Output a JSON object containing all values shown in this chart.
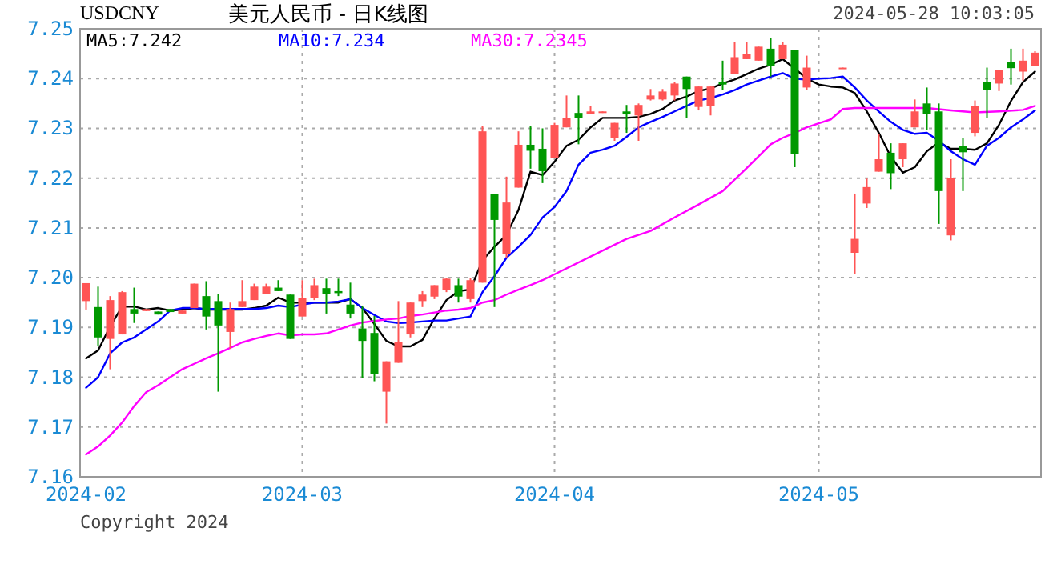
{
  "chart_data": {
    "type": "candlestick",
    "title": "美元人民币 - 日K线图",
    "subtitle": "USDCNY",
    "annotations": [
      "2024-05-28 10:03:05",
      "Copyright 2024"
    ],
    "categories": [
      "2024-02",
      null,
      null,
      null,
      null,
      null,
      null,
      null,
      null,
      null,
      null,
      null,
      null,
      null,
      null,
      null,
      null,
      null,
      "2024-03",
      null,
      null,
      null,
      null,
      null,
      null,
      null,
      null,
      null,
      null,
      null,
      null,
      null,
      null,
      null,
      null,
      null,
      null,
      null,
      null,
      "2024-04",
      null,
      null,
      null,
      null,
      null,
      null,
      null,
      null,
      null,
      null,
      null,
      null,
      null,
      null,
      null,
      null,
      null,
      null,
      null,
      null,
      null,
      "2024-05",
      null,
      null,
      null,
      null,
      null,
      null,
      null,
      null,
      null,
      null,
      null,
      null,
      null,
      null,
      null,
      null,
      null,
      null
    ],
    "ohlc": [
      [
        7.1953,
        7.1989,
        7.1936,
        7.1989
      ],
      [
        7.1941,
        7.1982,
        7.1862,
        7.188
      ],
      [
        7.1877,
        7.1963,
        7.1816,
        7.1955
      ],
      [
        7.1886,
        7.1973,
        7.1886,
        7.1971
      ],
      [
        7.1937,
        7.198,
        7.1909,
        7.1928
      ],
      [
        7.1933,
        7.1937,
        7.1933,
        7.1937
      ],
      [
        7.1932,
        7.1932,
        7.1926,
        7.1926
      ],
      [
        7.1937,
        7.1937,
        7.1931,
        7.1931
      ],
      [
        7.1928,
        7.1934,
        7.1928,
        7.1934
      ],
      [
        7.1939,
        7.1988,
        7.1939,
        7.1988
      ],
      [
        7.1963,
        7.1993,
        7.1896,
        7.1922
      ],
      [
        7.1953,
        7.1968,
        7.1771,
        7.1904
      ],
      [
        7.1891,
        7.195,
        7.1857,
        7.1937
      ],
      [
        7.1941,
        7.1995,
        7.1941,
        7.1953
      ],
      [
        7.1955,
        7.1988,
        7.1955,
        7.1982
      ],
      [
        7.1968,
        7.1988,
        7.1968,
        7.1982
      ],
      [
        7.198,
        7.1995,
        7.1973,
        7.1973
      ],
      [
        7.1966,
        7.1966,
        7.1877,
        7.1877
      ],
      [
        7.1922,
        7.1995,
        7.1922,
        7.196
      ],
      [
        7.196,
        7.1998,
        7.1955,
        7.1985
      ],
      [
        7.1979,
        7.1998,
        7.1928,
        7.1968
      ],
      [
        7.1973,
        7.1998,
        7.1963,
        7.1969
      ],
      [
        7.1946,
        7.199,
        7.1918,
        7.1928
      ],
      [
        7.1898,
        7.1944,
        7.1798,
        7.1873
      ],
      [
        7.1889,
        7.1923,
        7.1792,
        7.1806
      ],
      [
        7.1771,
        7.1832,
        7.1707,
        7.1832
      ],
      [
        7.1829,
        7.1953,
        7.1829,
        7.187
      ],
      [
        7.1886,
        7.195,
        7.188,
        7.195
      ],
      [
        7.1953,
        7.1973,
        7.1941,
        7.1966
      ],
      [
        7.1962,
        7.1985,
        7.1957,
        7.1985
      ],
      [
        7.1976,
        7.2,
        7.1971,
        7.1998
      ],
      [
        7.1985,
        7.1998,
        7.195,
        7.1962
      ],
      [
        7.1957,
        7.2,
        7.195,
        7.1995
      ],
      [
        7.199,
        7.2304,
        7.199,
        7.2294
      ],
      [
        7.2168,
        7.2168,
        7.1941,
        7.2116
      ],
      [
        7.2048,
        7.2203,
        7.2039,
        7.2151
      ],
      [
        7.2181,
        7.2294,
        7.2181,
        7.2267
      ],
      [
        7.2267,
        7.2304,
        7.2219,
        7.2255
      ],
      [
        7.2259,
        7.23,
        7.219,
        7.2214
      ],
      [
        7.224,
        7.2311,
        7.224,
        7.2307
      ],
      [
        7.2302,
        7.2366,
        7.2302,
        7.2321
      ],
      [
        7.2331,
        7.2366,
        7.2268,
        7.232
      ],
      [
        7.2329,
        7.2345,
        7.2329,
        7.2334
      ],
      [
        7.2331,
        7.2334,
        7.2331,
        7.2334
      ],
      [
        7.2281,
        7.2311,
        7.2275,
        7.2311
      ],
      [
        7.2334,
        7.2347,
        7.2291,
        7.2328
      ],
      [
        7.2326,
        7.235,
        7.2275,
        7.2347
      ],
      [
        7.2358,
        7.2379,
        7.2356,
        7.2366
      ],
      [
        7.2358,
        7.2379,
        7.2356,
        7.2374
      ],
      [
        7.2366,
        7.2393,
        7.2356,
        7.239
      ],
      [
        7.2404,
        7.2404,
        7.232,
        7.2379
      ],
      [
        7.2343,
        7.2384,
        7.2336,
        7.2384
      ],
      [
        7.2345,
        7.2384,
        7.2326,
        7.2384
      ],
      [
        7.2393,
        7.2436,
        7.2377,
        7.2388
      ],
      [
        7.2409,
        7.2473,
        7.2409,
        7.2443
      ],
      [
        7.2439,
        7.2473,
        7.2439,
        7.2449
      ],
      [
        7.2436,
        7.2464,
        7.2436,
        7.2464
      ],
      [
        7.246,
        7.2482,
        7.2404,
        7.2425
      ],
      [
        7.2439,
        7.2473,
        7.2439,
        7.2468
      ],
      [
        7.2457,
        7.2457,
        7.2222,
        7.2249
      ],
      [
        7.2382,
        7.2446,
        7.2377,
        7.2422
      ],
      null,
      null,
      [
        7.2421,
        7.2422,
        7.2421,
        7.2422
      ],
      [
        7.205,
        7.2169,
        7.2008,
        7.2078
      ],
      [
        7.2149,
        7.2199,
        7.214,
        7.2182
      ],
      [
        7.2213,
        7.2289,
        7.2213,
        7.2238
      ],
      [
        7.2251,
        7.227,
        7.2178,
        7.221
      ],
      [
        7.2238,
        7.227,
        7.2222,
        7.227
      ],
      [
        7.2302,
        7.2358,
        7.2302,
        7.2334
      ],
      [
        7.235,
        7.2382,
        7.2297,
        7.2329
      ],
      [
        7.2334,
        7.235,
        7.2108,
        7.2174
      ],
      [
        7.2085,
        7.2238,
        7.2075,
        7.22
      ],
      [
        7.2265,
        7.2281,
        7.2174,
        7.2252
      ],
      [
        7.2291,
        7.2356,
        7.2284,
        7.2345
      ],
      [
        7.2393,
        7.2422,
        7.2321,
        7.2377
      ],
      [
        7.239,
        7.2417,
        7.2375,
        7.2417
      ],
      [
        7.2433,
        7.246,
        7.2388,
        7.2421
      ],
      [
        7.2414,
        7.246,
        7.2396,
        7.2436
      ],
      [
        7.2425,
        7.2455,
        7.2425,
        7.2452
      ]
    ],
    "colors": [
      "#ff5555",
      "#009900",
      "#ff5555",
      "#ff5555",
      "#009900",
      "#ff5555",
      "#009900",
      "#009900",
      "#ff5555",
      "#ff5555",
      "#009900",
      "#009900",
      "#ff5555",
      "#ff5555",
      "#ff5555",
      "#ff5555",
      "#009900",
      "#009900",
      "#ff5555",
      "#ff5555",
      "#009900",
      "#009900",
      "#009900",
      "#009900",
      "#009900",
      "#ff5555",
      "#ff5555",
      "#ff5555",
      "#ff5555",
      "#ff5555",
      "#ff5555",
      "#009900",
      "#ff5555",
      "#ff5555",
      "#009900",
      "#ff5555",
      "#ff5555",
      "#009900",
      "#009900",
      "#ff5555",
      "#ff5555",
      "#009900",
      "#ff5555",
      "#ff5555",
      "#ff5555",
      "#009900",
      "#ff5555",
      "#ff5555",
      "#ff5555",
      "#ff5555",
      "#009900",
      "#ff5555",
      "#ff5555",
      "#009900",
      "#ff5555",
      "#ff5555",
      "#ff5555",
      "#009900",
      "#ff5555",
      "#009900",
      "#ff5555",
      null,
      null,
      "#ff5555",
      "#ff5555",
      "#ff5555",
      "#ff5555",
      "#009900",
      "#ff5555",
      "#ff5555",
      "#009900",
      "#009900",
      "#ff5555",
      "#009900",
      "#ff5555",
      "#009900",
      "#ff5555",
      "#009900",
      "#ff5555",
      "#ff5555"
    ],
    "series": [
      {
        "name": "MA5:7.242",
        "type": "line",
        "color": "#000000",
        "values": [
          7.1838,
          7.1854,
          7.1902,
          7.1942,
          7.1942,
          7.1936,
          7.1939,
          7.1934,
          7.1936,
          7.1939,
          7.1936,
          7.1936,
          7.1936,
          7.1936,
          7.1939,
          7.1944,
          7.196,
          7.195,
          7.195,
          7.195,
          7.195,
          7.195,
          7.1957,
          7.1939,
          7.1907,
          7.1873,
          7.1862,
          7.1862,
          7.1875,
          7.1918,
          7.1955,
          7.1973,
          7.1976,
          7.2035,
          7.2062,
          7.2086,
          7.2136,
          7.2213,
          7.2206,
          7.2233,
          7.2265,
          7.2277,
          7.2302,
          7.2321,
          7.2321,
          7.2321,
          7.2323,
          7.2329,
          7.2339,
          7.2356,
          7.2364,
          7.2375,
          7.238,
          7.239,
          7.2398,
          7.2409,
          7.242,
          7.2428,
          7.2439,
          7.242,
          7.24,
          7.2388,
          7.2384,
          7.2382,
          7.2371,
          7.2334,
          7.2291,
          7.2243,
          7.2211,
          7.2222,
          7.2254,
          7.2272,
          7.2259,
          7.2259,
          7.2257,
          7.227,
          7.2307,
          7.2355,
          7.2393,
          7.2414
        ]
      },
      {
        "name": "MA10:7.234",
        "type": "line",
        "color": "#0000ff",
        "values": [
          7.1779,
          7.18,
          7.1848,
          7.187,
          7.188,
          7.1896,
          7.1912,
          7.1934,
          7.1939,
          7.1939,
          7.1937,
          7.1937,
          7.1937,
          7.1937,
          7.1937,
          7.1939,
          7.1944,
          7.1941,
          7.1946,
          7.195,
          7.195,
          7.1952,
          7.1957,
          7.1939,
          7.1925,
          7.1912,
          7.1909,
          7.191,
          7.1912,
          7.1914,
          7.1914,
          7.1918,
          7.1922,
          7.1971,
          7.2003,
          7.204,
          7.2062,
          7.2086,
          7.2121,
          7.2142,
          7.2174,
          7.2227,
          7.2251,
          7.2257,
          7.2265,
          7.2283,
          7.2302,
          7.2313,
          7.2323,
          7.2334,
          7.2345,
          7.2356,
          7.2361,
          7.2368,
          7.2377,
          7.2388,
          7.2396,
          7.2404,
          7.2411,
          7.24,
          7.2398,
          7.24,
          7.2401,
          7.2404,
          7.2382,
          7.2356,
          7.2334,
          7.2313,
          7.2297,
          7.2289,
          7.2291,
          7.2275,
          7.2254,
          7.2238,
          7.2227,
          7.2265,
          7.2281,
          7.2302,
          7.2318,
          7.2336
        ]
      },
      {
        "name": "MA30:7.2345",
        "type": "line",
        "color": "#ff00ff",
        "values": [
          7.1645,
          7.1661,
          7.1683,
          7.1709,
          7.1742,
          7.177,
          7.1784,
          7.18,
          7.1816,
          7.1827,
          7.1838,
          7.1848,
          7.1859,
          7.187,
          7.1877,
          7.1883,
          7.1888,
          7.1884,
          7.1886,
          7.1886,
          7.1888,
          7.1896,
          7.1904,
          7.191,
          7.1913,
          7.1916,
          7.1918,
          7.1923,
          7.1926,
          7.193,
          7.1934,
          7.1936,
          7.1939,
          7.195,
          7.1955,
          7.1966,
          7.1976,
          7.1985,
          7.1995,
          null,
          null,
          null,
          null,
          null,
          null,
          7.2078,
          null,
          7.2094,
          null,
          7.2121,
          null,
          7.2147,
          null,
          7.2174,
          null,
          7.222,
          null,
          7.2268,
          7.2281,
          7.2291,
          7.2302,
          7.231,
          7.2318,
          7.2339,
          7.2341,
          null,
          7.2341,
          null,
          7.2341,
          null,
          7.2341,
          null,
          7.2336,
          null,
          7.2332,
          null,
          7.2334,
          null,
          7.2337,
          7.2345
        ]
      }
    ],
    "ylim": [
      7.16,
      7.25
    ],
    "yticks": [
      7.16,
      7.17,
      7.18,
      7.19,
      {
        "value": 7.2,
        "label": "7.20"
      },
      7.21,
      7.22,
      7.23,
      7.24,
      7.25
    ],
    "grid": true,
    "legend": "top left"
  }
}
